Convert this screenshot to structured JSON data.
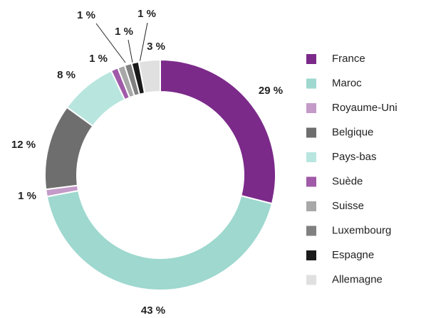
{
  "chart_data": {
    "type": "donut",
    "categories": [
      "France",
      "Maroc",
      "Royaume-Uni",
      "Belgique",
      "Pays-bas",
      "Suède",
      "Suisse",
      "Luxembourg",
      "Espagne",
      "Allemagne"
    ],
    "values": [
      29,
      43,
      1,
      12,
      8,
      1,
      1,
      1,
      1,
      3
    ],
    "value_labels": [
      "29 %",
      "43 %",
      "1 %",
      "12 %",
      "8 %",
      "1 %",
      "1 %",
      "1 %",
      "1 %",
      "3 %"
    ],
    "colors": [
      "#7b2a8a",
      "#9ed8cf",
      "#c49ac8",
      "#6e6e6e",
      "#b8e6df",
      "#a05aa8",
      "#a8a8a8",
      "#808080",
      "#1a1a1a",
      "#e0e0e0"
    ],
    "legend": "right"
  }
}
